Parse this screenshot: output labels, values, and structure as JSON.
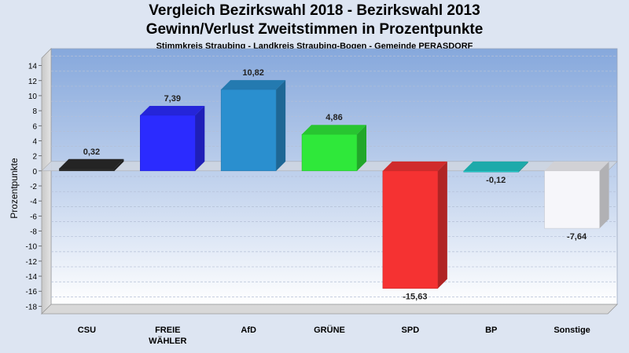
{
  "chart_data": {
    "type": "bar",
    "title": "Vergleich Bezirkswahl 2018 - Bezirkswahl 2013",
    "title2": "Gewinn/Verlust Zweitstimmen in Prozentpunkte",
    "subtitle": "Stimmkreis Straubing - Landkreis Straubing-Bogen - Gemeinde PERASDORF",
    "ylabel": "Prozentpunkte",
    "xlabel": "",
    "ylim": [
      -19,
      15
    ],
    "yticks": [
      14,
      12,
      10,
      8,
      6,
      4,
      2,
      0,
      -2,
      -4,
      -6,
      -8,
      -10,
      -12,
      -14,
      -16,
      -18
    ],
    "ytick_labels": [
      "14",
      "12",
      "10",
      "8",
      "6",
      "4",
      "2",
      "0",
      "-2",
      "-4",
      "-6",
      "-8",
      "-10",
      "-12",
      "-14",
      "-16",
      "-18"
    ],
    "grid": true,
    "categories": [
      "CSU",
      "FREIE WÄHLER",
      "AfD",
      "GRÜNE",
      "SPD",
      "BP",
      "Sonstige"
    ],
    "category_lines": [
      [
        "CSU"
      ],
      [
        "FREIE",
        "WÄHLER"
      ],
      [
        "AfD"
      ],
      [
        "GRÜNE"
      ],
      [
        "SPD"
      ],
      [
        "BP"
      ],
      [
        "Sonstige"
      ]
    ],
    "values": [
      0.32,
      7.39,
      10.82,
      4.86,
      -15.63,
      -0.12,
      -7.64
    ],
    "value_labels": [
      "0,32",
      "7,39",
      "10,82",
      "4,86",
      "-15,63",
      "-0,12",
      "-7,64"
    ],
    "colors": [
      "#2a2a2a",
      "#2b2bff",
      "#2a8fcf",
      "#2fe83a",
      "#f53232",
      "#22c8c8",
      "#f6f6fa"
    ]
  }
}
